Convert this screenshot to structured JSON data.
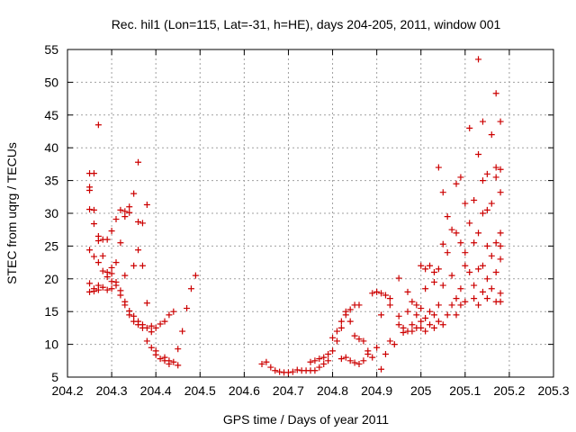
{
  "chart_data": {
    "type": "scatter",
    "title": "Rec. hil1 (Lon=115, Lat=-31, h=HE), days 204-205, 2011, window 001",
    "xlabel": "GPS time / Days of year 2011",
    "ylabel": "STEC from uqrg / TECUs",
    "xlim": [
      204.2,
      205.3
    ],
    "ylim": [
      5,
      55
    ],
    "x_ticks": [
      204.2,
      204.3,
      204.4,
      204.5,
      204.6,
      204.7,
      204.8,
      204.9,
      205,
      205.1,
      205.2,
      205.3
    ],
    "x_tick_labels": [
      "204.2",
      "204.3",
      "204.4",
      "204.5",
      "204.6",
      "204.7",
      "204.8",
      "204.9",
      "205",
      "205.1",
      "205.2",
      "205.3"
    ],
    "y_ticks": [
      5,
      10,
      15,
      20,
      25,
      30,
      35,
      40,
      45,
      50,
      55
    ],
    "y_tick_labels": [
      "5",
      "10",
      "15",
      "20",
      "25",
      "30",
      "35",
      "40",
      "45",
      "50",
      "55"
    ],
    "grid": true,
    "marker": "+",
    "color": "#cc0000",
    "points": [
      [
        204.25,
        36.1
      ],
      [
        204.25,
        34.0
      ],
      [
        204.25,
        33.5
      ],
      [
        204.25,
        30.6
      ],
      [
        204.25,
        24.4
      ],
      [
        204.25,
        19.3
      ],
      [
        204.25,
        18.0
      ],
      [
        204.26,
        36.1
      ],
      [
        204.26,
        30.5
      ],
      [
        204.26,
        28.4
      ],
      [
        204.26,
        23.4
      ],
      [
        204.26,
        18.5
      ],
      [
        204.26,
        18.1
      ],
      [
        204.27,
        18.3
      ],
      [
        204.27,
        26.5
      ],
      [
        204.27,
        25.8
      ],
      [
        204.27,
        22.5
      ],
      [
        204.27,
        19.0
      ],
      [
        204.27,
        43.5
      ],
      [
        204.28,
        26.0
      ],
      [
        204.28,
        23.5
      ],
      [
        204.28,
        21.2
      ],
      [
        204.28,
        18.7
      ],
      [
        204.29,
        26.0
      ],
      [
        204.29,
        21.0
      ],
      [
        204.29,
        20.3
      ],
      [
        204.29,
        18.3
      ],
      [
        204.3,
        27.3
      ],
      [
        204.3,
        21.7
      ],
      [
        204.3,
        20.8
      ],
      [
        204.3,
        19.6
      ],
      [
        204.3,
        18.5
      ],
      [
        204.31,
        29.1
      ],
      [
        204.31,
        22.5
      ],
      [
        204.31,
        19.5
      ],
      [
        204.31,
        19.0
      ],
      [
        204.32,
        30.5
      ],
      [
        204.32,
        25.5
      ],
      [
        204.32,
        17.5
      ],
      [
        204.32,
        18.2
      ],
      [
        204.33,
        30.3
      ],
      [
        204.33,
        29.5
      ],
      [
        204.33,
        20.5
      ],
      [
        204.33,
        16.5
      ],
      [
        204.33,
        16.0
      ],
      [
        204.34,
        31.0
      ],
      [
        204.34,
        30.1
      ],
      [
        204.34,
        15.1
      ],
      [
        204.34,
        14.5
      ],
      [
        204.35,
        33.0
      ],
      [
        204.35,
        22.0
      ],
      [
        204.35,
        14.3
      ],
      [
        204.35,
        13.5
      ],
      [
        204.36,
        37.8
      ],
      [
        204.36,
        28.7
      ],
      [
        204.36,
        24.4
      ],
      [
        204.36,
        13.5
      ],
      [
        204.36,
        13.0
      ],
      [
        204.37,
        28.5
      ],
      [
        204.37,
        22.0
      ],
      [
        204.37,
        13.0
      ],
      [
        204.37,
        12.5
      ],
      [
        204.38,
        31.3
      ],
      [
        204.38,
        16.3
      ],
      [
        204.38,
        12.5
      ],
      [
        204.38,
        10.5
      ],
      [
        204.39,
        12.8
      ],
      [
        204.39,
        11.9
      ],
      [
        204.39,
        9.5
      ],
      [
        204.4,
        12.5
      ],
      [
        204.4,
        9.0
      ],
      [
        204.4,
        8.4
      ],
      [
        204.41,
        13.1
      ],
      [
        204.41,
        7.8
      ],
      [
        204.42,
        13.5
      ],
      [
        204.42,
        8.0
      ],
      [
        204.42,
        7.5
      ],
      [
        204.43,
        14.5
      ],
      [
        204.43,
        7.5
      ],
      [
        204.43,
        7.0
      ],
      [
        204.44,
        15.0
      ],
      [
        204.44,
        7.3
      ],
      [
        204.45,
        9.3
      ],
      [
        204.45,
        6.8
      ],
      [
        204.46,
        12.0
      ],
      [
        204.47,
        15.5
      ],
      [
        204.48,
        18.5
      ],
      [
        204.49,
        20.5
      ],
      [
        204.64,
        7.0
      ],
      [
        204.65,
        7.3
      ],
      [
        204.66,
        6.5
      ],
      [
        204.67,
        6.0
      ],
      [
        204.68,
        5.8
      ],
      [
        204.69,
        5.7
      ],
      [
        204.7,
        5.7
      ],
      [
        204.71,
        5.8
      ],
      [
        204.72,
        6.1
      ],
      [
        204.73,
        6.0
      ],
      [
        204.74,
        6.0
      ],
      [
        204.75,
        6.0
      ],
      [
        204.75,
        7.3
      ],
      [
        204.76,
        7.5
      ],
      [
        204.76,
        6.0
      ],
      [
        204.77,
        7.8
      ],
      [
        204.77,
        6.5
      ],
      [
        204.78,
        8.0
      ],
      [
        204.78,
        7.0
      ],
      [
        204.79,
        8.5
      ],
      [
        204.79,
        7.5
      ],
      [
        204.8,
        9.0
      ],
      [
        204.8,
        11.0
      ],
      [
        204.81,
        10.5
      ],
      [
        204.81,
        12.0
      ],
      [
        204.82,
        13.5
      ],
      [
        204.82,
        12.5
      ],
      [
        204.82,
        7.8
      ],
      [
        204.83,
        15.0
      ],
      [
        204.83,
        14.5
      ],
      [
        204.83,
        8.0
      ],
      [
        204.84,
        15.3
      ],
      [
        204.84,
        13.5
      ],
      [
        204.84,
        7.5
      ],
      [
        204.85,
        16.0
      ],
      [
        204.85,
        11.3
      ],
      [
        204.85,
        7.2
      ],
      [
        204.86,
        16.0
      ],
      [
        204.86,
        10.8
      ],
      [
        204.86,
        7.0
      ],
      [
        204.87,
        10.5
      ],
      [
        204.87,
        7.5
      ],
      [
        204.88,
        9.0
      ],
      [
        204.88,
        8.5
      ],
      [
        204.89,
        17.8
      ],
      [
        204.89,
        8.0
      ],
      [
        204.9,
        18.0
      ],
      [
        204.9,
        9.5
      ],
      [
        204.91,
        17.8
      ],
      [
        204.91,
        14.5
      ],
      [
        204.91,
        6.2
      ],
      [
        204.92,
        17.5
      ],
      [
        204.92,
        8.5
      ],
      [
        204.93,
        17.0
      ],
      [
        204.93,
        16.0
      ],
      [
        204.93,
        10.5
      ],
      [
        204.94,
        10.0
      ],
      [
        204.95,
        20.1
      ],
      [
        204.95,
        14.3
      ],
      [
        204.95,
        13.0
      ],
      [
        204.96,
        12.5
      ],
      [
        204.96,
        11.8
      ],
      [
        204.97,
        18.0
      ],
      [
        204.97,
        15.0
      ],
      [
        204.97,
        12.0
      ],
      [
        204.98,
        16.5
      ],
      [
        204.98,
        13.0
      ],
      [
        204.98,
        12.0
      ],
      [
        204.99,
        16.0
      ],
      [
        204.99,
        14.5
      ],
      [
        204.99,
        12.5
      ],
      [
        205.0,
        22.0
      ],
      [
        205.0,
        15.5
      ],
      [
        205.0,
        13.5
      ],
      [
        205.0,
        12.5
      ],
      [
        205.01,
        21.5
      ],
      [
        205.01,
        18.5
      ],
      [
        205.01,
        14.0
      ],
      [
        205.01,
        12.0
      ],
      [
        205.02,
        22.0
      ],
      [
        205.02,
        15.0
      ],
      [
        205.02,
        13.0
      ],
      [
        205.03,
        21.0
      ],
      [
        205.03,
        19.5
      ],
      [
        205.03,
        14.5
      ],
      [
        205.03,
        12.5
      ],
      [
        205.04,
        37.0
      ],
      [
        205.04,
        21.5
      ],
      [
        205.04,
        16.0
      ],
      [
        205.04,
        13.5
      ],
      [
        205.05,
        33.2
      ],
      [
        205.05,
        25.3
      ],
      [
        205.05,
        19.0
      ],
      [
        205.05,
        13.0
      ],
      [
        205.06,
        29.5
      ],
      [
        205.06,
        24.0
      ],
      [
        205.06,
        14.5
      ],
      [
        205.07,
        27.5
      ],
      [
        205.07,
        20.5
      ],
      [
        205.07,
        16.0
      ],
      [
        205.08,
        34.5
      ],
      [
        205.08,
        27.0
      ],
      [
        205.08,
        17.0
      ],
      [
        205.08,
        14.5
      ],
      [
        205.09,
        35.5
      ],
      [
        205.09,
        25.5
      ],
      [
        205.09,
        18.5
      ],
      [
        205.09,
        16.0
      ],
      [
        205.1,
        31.5
      ],
      [
        205.1,
        24.0
      ],
      [
        205.1,
        22.0
      ],
      [
        205.1,
        16.5
      ],
      [
        205.11,
        43.0
      ],
      [
        205.11,
        28.5
      ],
      [
        205.11,
        21.0
      ],
      [
        205.12,
        32.0
      ],
      [
        205.12,
        25.5
      ],
      [
        205.12,
        19.0
      ],
      [
        205.12,
        17.0
      ],
      [
        205.13,
        53.5
      ],
      [
        205.13,
        39.0
      ],
      [
        205.13,
        27.0
      ],
      [
        205.13,
        21.5
      ],
      [
        205.13,
        16.0
      ],
      [
        205.14,
        44.0
      ],
      [
        205.14,
        35.0
      ],
      [
        205.14,
        30.0
      ],
      [
        205.14,
        22.0
      ],
      [
        205.14,
        18.0
      ],
      [
        205.15,
        36.0
      ],
      [
        205.15,
        30.5
      ],
      [
        205.15,
        25.0
      ],
      [
        205.15,
        20.0
      ],
      [
        205.15,
        17.0
      ],
      [
        205.16,
        42.0
      ],
      [
        205.16,
        31.5
      ],
      [
        205.16,
        23.5
      ],
      [
        205.16,
        18.5
      ],
      [
        205.17,
        48.3
      ],
      [
        205.17,
        37.0
      ],
      [
        205.17,
        35.5
      ],
      [
        205.17,
        25.5
      ],
      [
        205.17,
        21.0
      ],
      [
        205.17,
        16.5
      ],
      [
        205.18,
        44.0
      ],
      [
        205.18,
        36.7
      ],
      [
        205.18,
        33.2
      ],
      [
        205.18,
        27.0
      ],
      [
        205.18,
        25.0
      ],
      [
        205.18,
        23.0
      ],
      [
        205.18,
        17.8
      ],
      [
        205.18,
        16.5
      ]
    ]
  }
}
